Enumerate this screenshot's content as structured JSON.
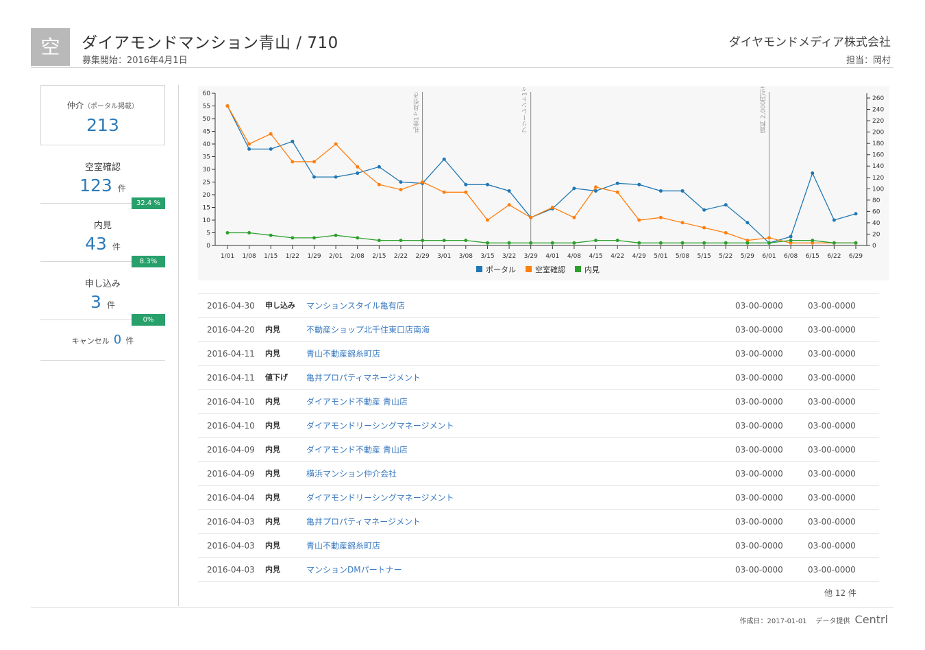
{
  "header": {
    "badge": "空",
    "title": "ダイアモンドマンション青山 / 710",
    "subtitle": "募集開始：2016年4月1日",
    "company": "ダイヤモンドメディア株式会社",
    "owner": "担当：岡村"
  },
  "sidebar": {
    "broker_label": "仲介",
    "broker_sub": "（ポータル掲載）",
    "broker_value": "213",
    "stats": [
      {
        "label": "空室確認",
        "value": "123",
        "unit": "件",
        "pct": "32.4 %"
      },
      {
        "label": "内見",
        "value": "43",
        "unit": "件",
        "pct": "8.3%"
      },
      {
        "label": "申し込み",
        "value": "3",
        "unit": "件",
        "pct": "0%"
      }
    ],
    "cancel": {
      "label": "キャンセル",
      "value": "0",
      "unit": "件"
    }
  },
  "chart_data": {
    "type": "line",
    "categories": [
      "1/01",
      "1/08",
      "1/15",
      "1/22",
      "1/29",
      "2/01",
      "2/08",
      "2/15",
      "2/22",
      "2/29",
      "3/01",
      "3/08",
      "3/15",
      "3/22",
      "3/29",
      "4/01",
      "4/08",
      "4/15",
      "4/22",
      "4/29",
      "5/01",
      "5/08",
      "5/15",
      "5/22",
      "5/29",
      "6/01",
      "6/08",
      "6/15",
      "6/22",
      "6/29"
    ],
    "y_left": {
      "min": 0,
      "max": 60,
      "ticks": [
        0,
        5,
        10,
        15,
        20,
        25,
        30,
        35,
        40,
        45,
        50,
        55,
        60
      ]
    },
    "y_right": {
      "min": 0,
      "max": 260,
      "ticks": [
        0,
        20,
        40,
        60,
        80,
        100,
        120,
        140,
        160,
        180,
        200,
        220,
        240,
        260
      ]
    },
    "series": [
      {
        "name": "ポータル",
        "color": "#1f77b4",
        "values": [
          55,
          38,
          38,
          41,
          27,
          27,
          28.5,
          31,
          25,
          24.5,
          34,
          24,
          24,
          21.5,
          11,
          14.5,
          22.5,
          21.5,
          24.5,
          24,
          21.5,
          21.5,
          14,
          16,
          9,
          1,
          3.5,
          28.5,
          10,
          12.5
        ]
      },
      {
        "name": "空室確認",
        "color": "#ff7f0e",
        "values": [
          55,
          40,
          44,
          33,
          33,
          40,
          31,
          24,
          22,
          25,
          21,
          21,
          10,
          16,
          11,
          15,
          11,
          23,
          21,
          10,
          11,
          9,
          7,
          5,
          2,
          3,
          1,
          1,
          1,
          1
        ]
      },
      {
        "name": "内見",
        "color": "#2ca02c",
        "values": [
          5,
          5,
          4,
          3,
          3,
          4,
          3,
          2,
          2,
          2,
          2,
          2,
          1,
          1,
          1,
          1,
          1,
          2,
          2,
          1,
          1,
          1,
          1,
          1,
          1,
          1,
          2,
          2,
          1,
          1
        ]
      }
    ],
    "annotations": [
      {
        "x": "2/29",
        "label": "礼金1ヶ月引き"
      },
      {
        "x": "3/29",
        "label": "フリーレント1ヶ月"
      },
      {
        "x": "6/01",
        "label": "賃料 2,000円引き"
      }
    ],
    "legend": "bottom-center"
  },
  "table": {
    "rows": [
      {
        "date": "2016-04-30",
        "type": "申し込み",
        "name": "マンションスタイル亀有店",
        "phone1": "03-00-0000",
        "phone2": "03-00-0000"
      },
      {
        "date": "2016-04-20",
        "type": "内見",
        "name": "不動産ショップ北千住東口店南海",
        "phone1": "03-00-0000",
        "phone2": "03-00-0000"
      },
      {
        "date": "2016-04-11",
        "type": "内見",
        "name": "青山不動産錦糸町店",
        "phone1": "03-00-0000",
        "phone2": "03-00-0000"
      },
      {
        "date": "2016-04-11",
        "type": "値下げ",
        "name": "亀井プロパティマネージメント",
        "phone1": "03-00-0000",
        "phone2": "03-00-0000"
      },
      {
        "date": "2016-04-10",
        "type": "内見",
        "name": "ダイアモンド不動産 青山店",
        "phone1": "03-00-0000",
        "phone2": "03-00-0000"
      },
      {
        "date": "2016-04-10",
        "type": "内見",
        "name": "ダイアモンドリーシングマネージメント",
        "phone1": "03-00-0000",
        "phone2": "03-00-0000"
      },
      {
        "date": "2016-04-09",
        "type": "内見",
        "name": "ダイアモンド不動産 青山店",
        "phone1": "03-00-0000",
        "phone2": "03-00-0000"
      },
      {
        "date": "2016-04-09",
        "type": "内見",
        "name": "横浜マンション仲介会社",
        "phone1": "03-00-0000",
        "phone2": "03-00-0000"
      },
      {
        "date": "2016-04-04",
        "type": "内見",
        "name": "ダイアモンドリーシングマネージメント",
        "phone1": "03-00-0000",
        "phone2": "03-00-0000"
      },
      {
        "date": "2016-04-03",
        "type": "内見",
        "name": "亀井プロパティマネージメント",
        "phone1": "03-00-0000",
        "phone2": "03-00-0000"
      },
      {
        "date": "2016-04-03",
        "type": "内見",
        "name": "青山不動産錦糸町店",
        "phone1": "03-00-0000",
        "phone2": "03-00-0000"
      },
      {
        "date": "2016-04-03",
        "type": "内見",
        "name": "マンションDMパートナー",
        "phone1": "03-00-0000",
        "phone2": "03-00-0000"
      }
    ],
    "more": "他 12 件"
  },
  "footer": {
    "created": "作成日：2017-01-01",
    "provider": "データ提供",
    "brand": "Centrl"
  }
}
